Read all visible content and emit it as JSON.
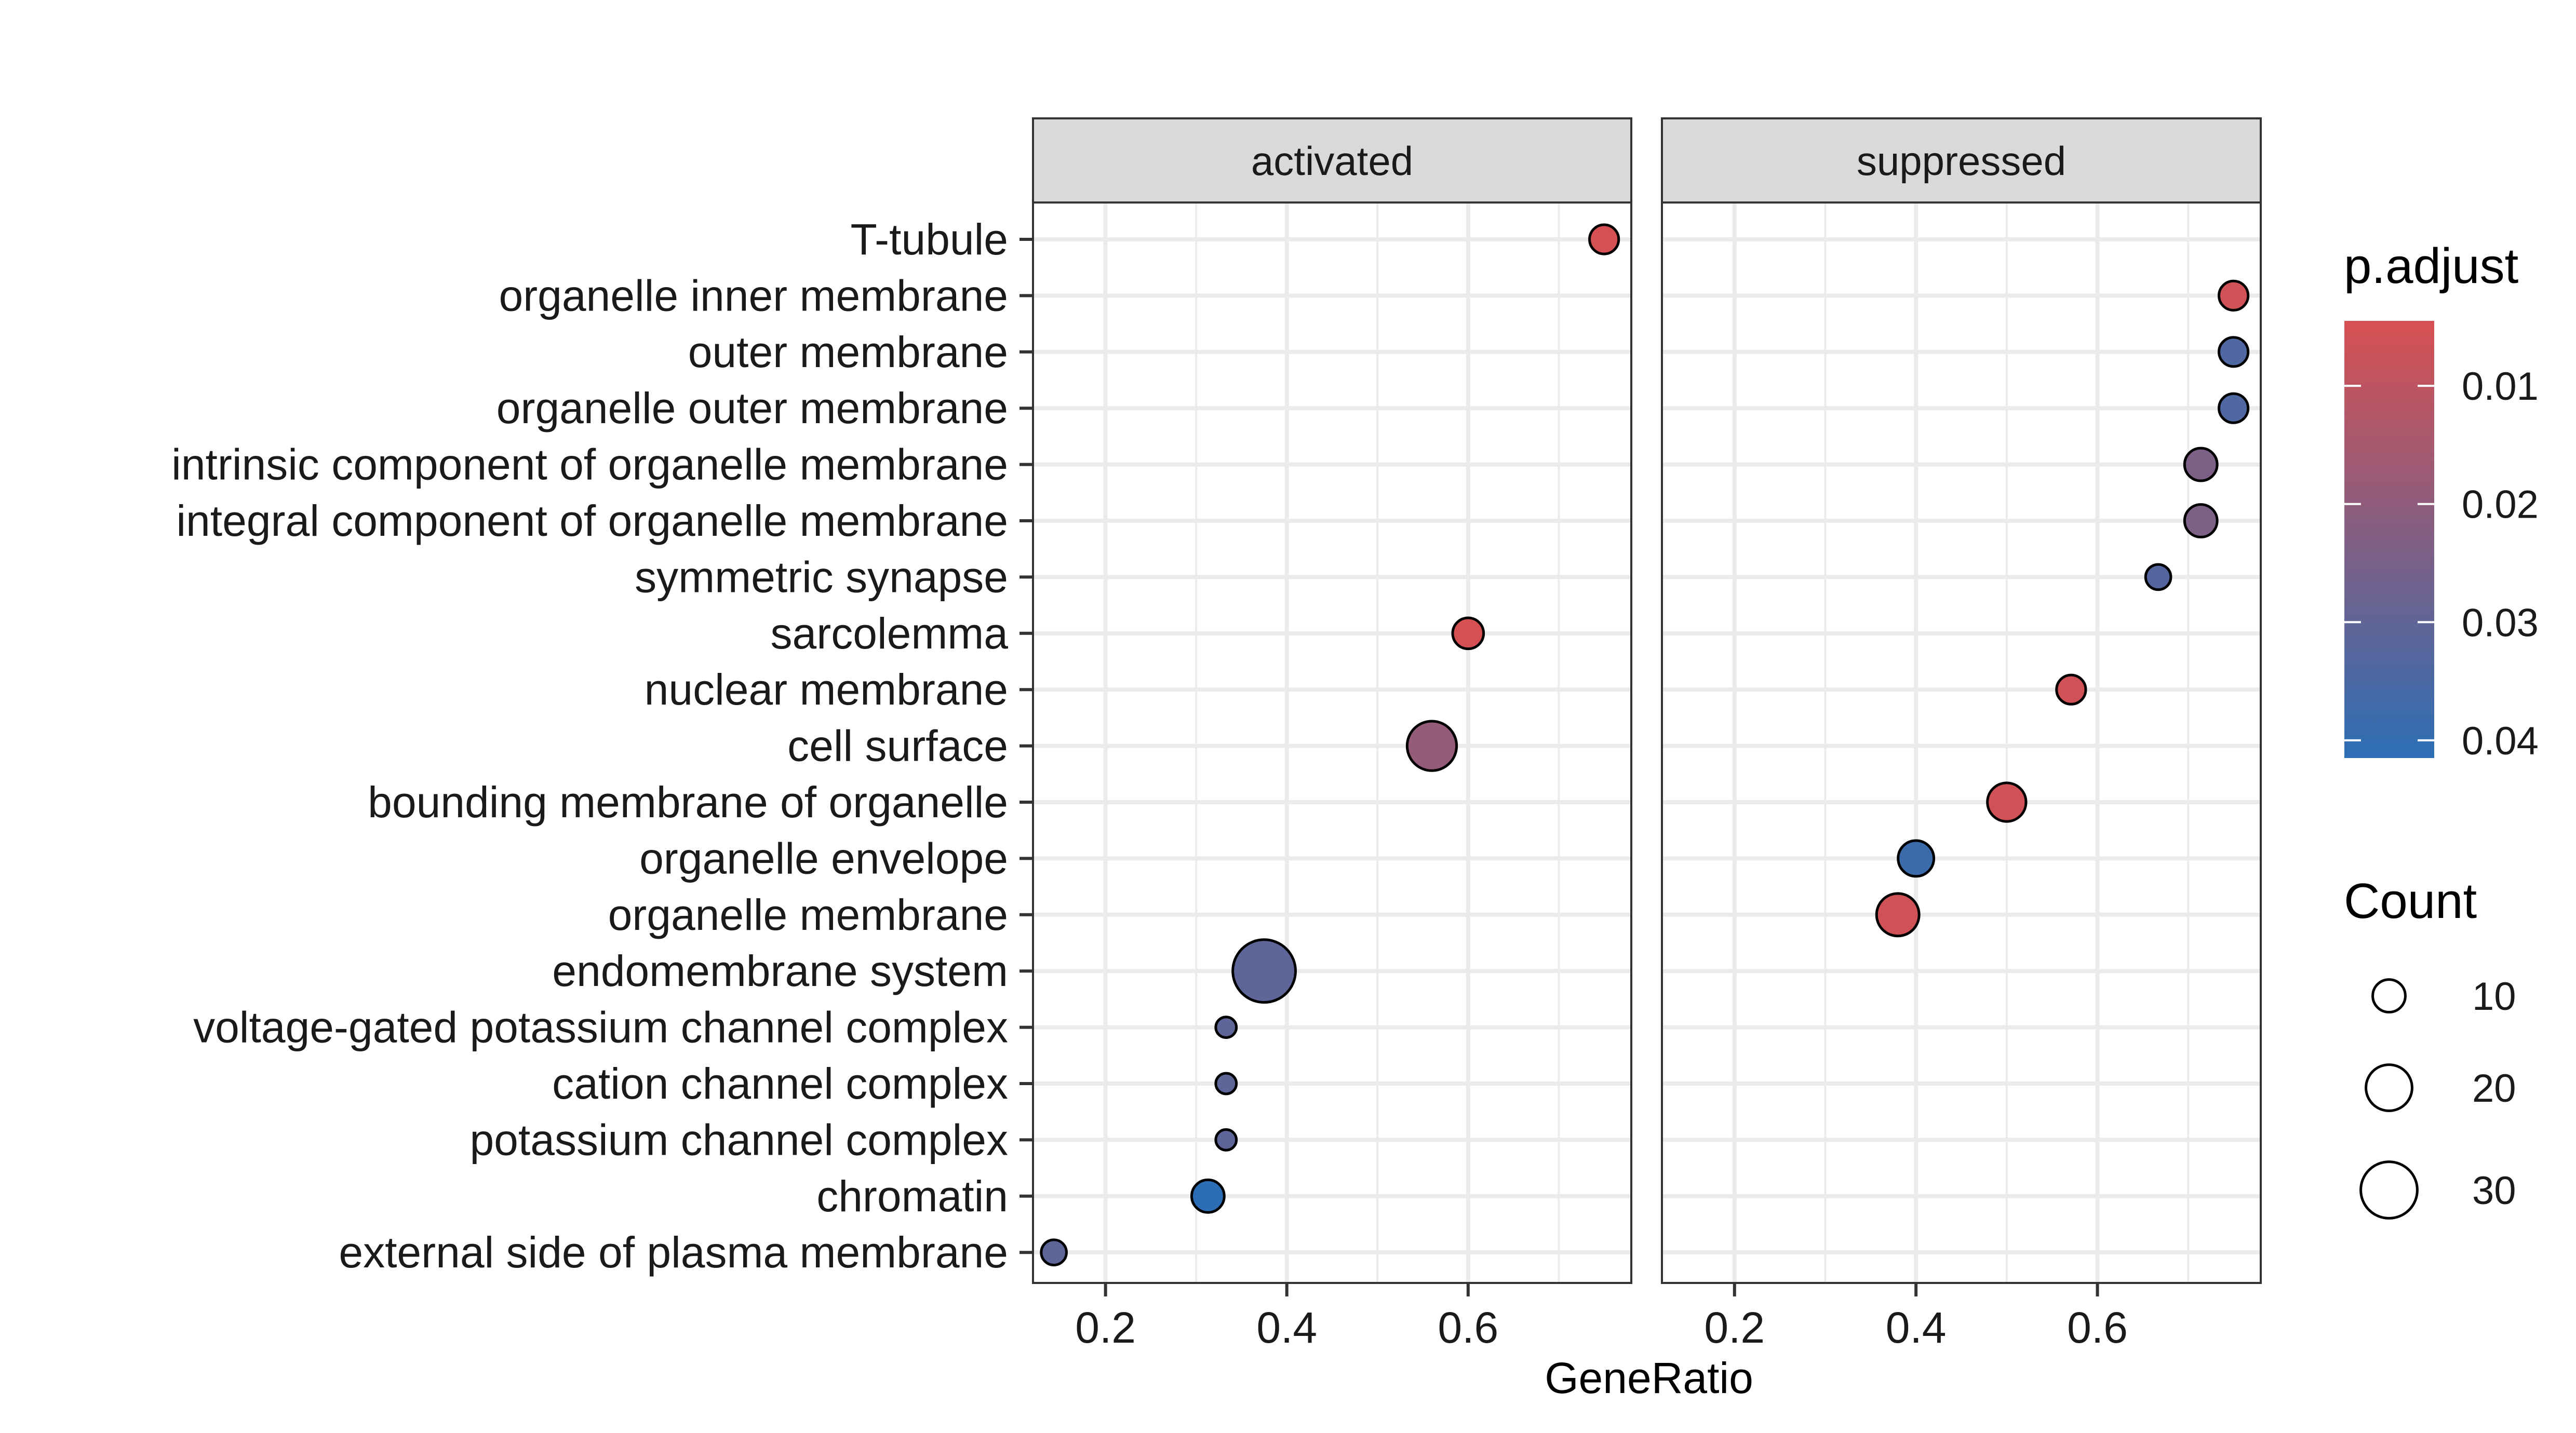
{
  "chart_data": {
    "type": "scatter",
    "title": "",
    "xlabel": "GeneRatio",
    "ylabel": "",
    "facets": [
      "activated",
      "suppressed"
    ],
    "xlim": [
      0.12,
      0.78
    ],
    "xticks": [
      0.2,
      0.4,
      0.6
    ],
    "xtick_labels": [
      "0.2",
      "0.4",
      "0.6"
    ],
    "categories": [
      "T-tubule",
      "organelle inner membrane",
      "outer membrane",
      "organelle outer membrane",
      "intrinsic component of organelle membrane",
      "integral component of organelle membrane",
      "symmetric synapse",
      "sarcolemma",
      "nuclear membrane",
      "cell surface",
      "bounding membrane of organelle",
      "organelle envelope",
      "organelle membrane",
      "endomembrane system",
      "voltage-gated potassium channel complex",
      "cation channel complex",
      "potassium channel complex",
      "chromatin",
      "external side of plasma membrane"
    ],
    "series": [
      {
        "facet": "activated",
        "points": [
          {
            "term": "T-tubule",
            "gene_ratio": 0.75,
            "count": 8,
            "p_adjust": 0.005
          },
          {
            "term": "sarcolemma",
            "gene_ratio": 0.6,
            "count": 9,
            "p_adjust": 0.005
          },
          {
            "term": "cell surface",
            "gene_ratio": 0.56,
            "count": 23,
            "p_adjust": 0.019
          },
          {
            "term": "endomembrane system",
            "gene_ratio": 0.375,
            "count": 37,
            "p_adjust": 0.031
          },
          {
            "term": "voltage-gated potassium channel complex",
            "gene_ratio": 0.333,
            "count": 4,
            "p_adjust": 0.031
          },
          {
            "term": "cation channel complex",
            "gene_ratio": 0.333,
            "count": 4,
            "p_adjust": 0.031
          },
          {
            "term": "potassium channel complex",
            "gene_ratio": 0.333,
            "count": 4,
            "p_adjust": 0.031
          },
          {
            "term": "chromatin",
            "gene_ratio": 0.313,
            "count": 10,
            "p_adjust": 0.042
          },
          {
            "term": "external side of plasma membrane",
            "gene_ratio": 0.143,
            "count": 6,
            "p_adjust": 0.031
          }
        ]
      },
      {
        "facet": "suppressed",
        "points": [
          {
            "term": "organelle inner membrane",
            "gene_ratio": 0.75,
            "count": 8,
            "p_adjust": 0.006
          },
          {
            "term": "outer membrane",
            "gene_ratio": 0.75,
            "count": 8,
            "p_adjust": 0.034
          },
          {
            "term": "organelle outer membrane",
            "gene_ratio": 0.75,
            "count": 8,
            "p_adjust": 0.034
          },
          {
            "term": "intrinsic component of organelle membrane",
            "gene_ratio": 0.714,
            "count": 10,
            "p_adjust": 0.024
          },
          {
            "term": "integral component of organelle membrane",
            "gene_ratio": 0.714,
            "count": 10,
            "p_adjust": 0.024
          },
          {
            "term": "symmetric synapse",
            "gene_ratio": 0.667,
            "count": 6,
            "p_adjust": 0.033
          },
          {
            "term": "nuclear membrane",
            "gene_ratio": 0.571,
            "count": 8,
            "p_adjust": 0.006
          },
          {
            "term": "bounding membrane of organelle",
            "gene_ratio": 0.5,
            "count": 14,
            "p_adjust": 0.006
          },
          {
            "term": "organelle envelope",
            "gene_ratio": 0.4,
            "count": 12,
            "p_adjust": 0.038
          },
          {
            "term": "organelle membrane",
            "gene_ratio": 0.38,
            "count": 17,
            "p_adjust": 0.006
          }
        ]
      }
    ],
    "color_legend": {
      "title": "p.adjust",
      "ticks": [
        0.01,
        0.02,
        0.03,
        0.04
      ],
      "tick_labels": [
        "0.01",
        "0.02",
        "0.03",
        "0.04"
      ],
      "low_value": 0.0045,
      "high_value": 0.0415,
      "low_color": "#d75052",
      "high_color": "#2c6eb5"
    },
    "size_legend": {
      "title": "Count",
      "values": [
        10,
        20,
        30
      ],
      "labels": [
        "10",
        "20",
        "30"
      ],
      "range": [
        4,
        37
      ]
    },
    "grid": true,
    "legend_position": "right"
  }
}
